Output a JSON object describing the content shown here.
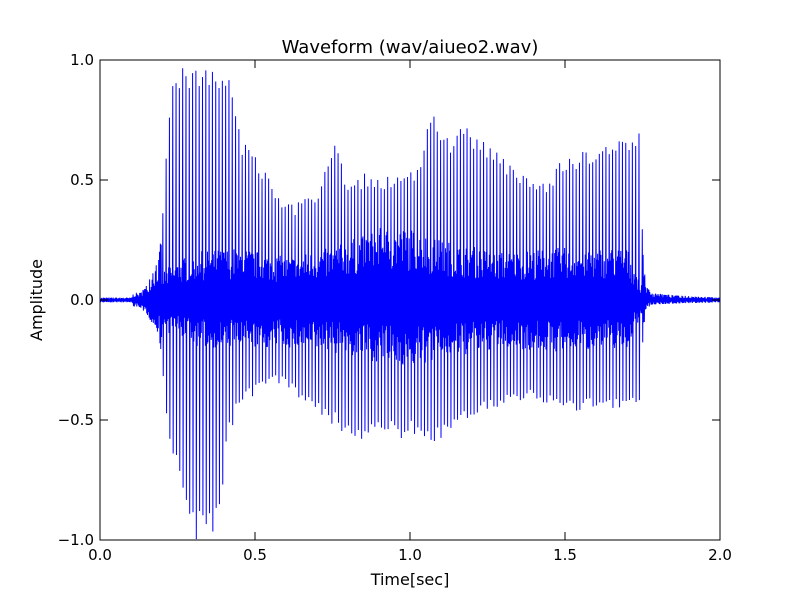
{
  "chart_data": {
    "type": "line",
    "title": "Waveform (wav/aiueo2.wav)",
    "xlabel": "Time[sec]",
    "ylabel": "Amplitude",
    "xlim": [
      0.0,
      2.0
    ],
    "ylim": [
      -1.0,
      1.0
    ],
    "xticks": [
      {
        "value": 0.0,
        "label": "0.0"
      },
      {
        "value": 0.5,
        "label": "0.5"
      },
      {
        "value": 1.0,
        "label": "1.0"
      },
      {
        "value": 1.5,
        "label": "1.5"
      },
      {
        "value": 2.0,
        "label": "2.0"
      }
    ],
    "yticks": [
      {
        "value": -1.0,
        "label": "−1.0"
      },
      {
        "value": -0.5,
        "label": "−0.5"
      },
      {
        "value": 0.0,
        "label": "0.0"
      },
      {
        "value": 0.5,
        "label": "0.5"
      },
      {
        "value": 1.0,
        "label": "1.0"
      }
    ],
    "grid": false,
    "line_color": "#0000ff",
    "envelope": {
      "time": [
        0.0,
        0.1,
        0.11,
        0.13,
        0.14,
        0.15,
        0.17,
        0.19,
        0.2,
        0.21,
        0.23,
        0.25,
        0.27,
        0.29,
        0.31,
        0.33,
        0.35,
        0.37,
        0.39,
        0.41,
        0.43,
        0.45,
        0.47,
        0.5,
        0.53,
        0.55,
        0.58,
        0.6,
        0.63,
        0.66,
        0.7,
        0.73,
        0.76,
        0.78,
        0.8,
        0.83,
        0.86,
        0.9,
        0.93,
        0.96,
        1.0,
        1.03,
        1.06,
        1.08,
        1.1,
        1.13,
        1.16,
        1.2,
        1.24,
        1.28,
        1.32,
        1.36,
        1.4,
        1.44,
        1.48,
        1.52,
        1.56,
        1.6,
        1.64,
        1.68,
        1.72,
        1.74,
        1.75,
        1.76,
        1.78,
        1.85,
        2.0
      ],
      "upper": [
        0.01,
        0.01,
        0.03,
        0.03,
        0.05,
        0.06,
        0.12,
        0.18,
        0.3,
        0.55,
        0.9,
        0.97,
        0.99,
        0.92,
        0.98,
        1.0,
        0.97,
        0.99,
        0.97,
        0.96,
        0.86,
        0.7,
        0.66,
        0.6,
        0.56,
        0.5,
        0.45,
        0.41,
        0.4,
        0.44,
        0.46,
        0.55,
        0.68,
        0.58,
        0.5,
        0.52,
        0.53,
        0.52,
        0.52,
        0.54,
        0.53,
        0.6,
        0.76,
        0.8,
        0.74,
        0.66,
        0.72,
        0.72,
        0.66,
        0.62,
        0.58,
        0.55,
        0.5,
        0.5,
        0.57,
        0.6,
        0.62,
        0.6,
        0.66,
        0.68,
        0.7,
        0.7,
        0.3,
        0.06,
        0.03,
        0.02,
        0.01
      ],
      "lower": [
        -0.01,
        -0.01,
        -0.03,
        -0.03,
        -0.05,
        -0.06,
        -0.1,
        -0.15,
        -0.25,
        -0.48,
        -0.62,
        -0.7,
        -0.8,
        -0.9,
        -1.0,
        -0.98,
        -0.95,
        -0.99,
        -0.92,
        -0.6,
        -0.52,
        -0.45,
        -0.42,
        -0.4,
        -0.38,
        -0.36,
        -0.35,
        -0.36,
        -0.4,
        -0.44,
        -0.47,
        -0.5,
        -0.53,
        -0.55,
        -0.57,
        -0.6,
        -0.58,
        -0.57,
        -0.56,
        -0.58,
        -0.57,
        -0.58,
        -0.6,
        -0.62,
        -0.58,
        -0.55,
        -0.52,
        -0.5,
        -0.48,
        -0.46,
        -0.44,
        -0.43,
        -0.42,
        -0.44,
        -0.46,
        -0.47,
        -0.46,
        -0.44,
        -0.45,
        -0.46,
        -0.46,
        -0.45,
        -0.2,
        -0.04,
        -0.02,
        -0.015,
        -0.01
      ]
    },
    "dense_band": {
      "time": [
        0.2,
        0.3,
        0.45,
        0.6,
        0.75,
        0.9,
        1.0,
        1.1,
        1.3,
        1.5,
        1.7,
        1.75
      ],
      "upper": [
        0.12,
        0.2,
        0.22,
        0.18,
        0.22,
        0.3,
        0.3,
        0.25,
        0.2,
        0.22,
        0.22,
        0.05
      ],
      "lower": [
        -0.12,
        -0.2,
        -0.2,
        -0.2,
        -0.22,
        -0.26,
        -0.28,
        -0.25,
        -0.2,
        -0.22,
        -0.2,
        -0.05
      ]
    }
  }
}
